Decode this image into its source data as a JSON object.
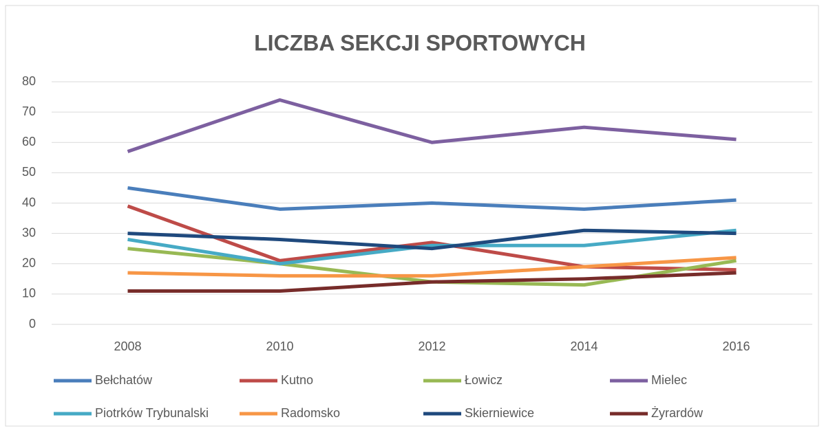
{
  "chart_data": {
    "type": "line",
    "title": "LICZBA SEKCJI SPORTOWYCH",
    "categories": [
      "2008",
      "2010",
      "2012",
      "2014",
      "2016"
    ],
    "series": [
      {
        "name": "Bełchatów",
        "color": "#4a7ebb",
        "values": [
          45,
          38,
          40,
          38,
          41
        ]
      },
      {
        "name": "Kutno",
        "color": "#be4b48",
        "values": [
          39,
          21,
          27,
          19,
          18
        ]
      },
      {
        "name": "Łowicz",
        "color": "#98b954",
        "values": [
          25,
          20,
          14,
          13,
          21
        ]
      },
      {
        "name": "Mielec",
        "color": "#7d60a0",
        "values": [
          57,
          74,
          60,
          65,
          61
        ]
      },
      {
        "name": "Piotrków Trybunalski",
        "color": "#46aac5",
        "values": [
          28,
          20,
          26,
          26,
          31
        ]
      },
      {
        "name": "Radomsko",
        "color": "#f79646",
        "values": [
          17,
          16,
          16,
          19,
          22
        ]
      },
      {
        "name": "Skierniewice",
        "color": "#1f497d",
        "values": [
          30,
          28,
          25,
          31,
          30
        ]
      },
      {
        "name": "Żyrardów",
        "color": "#772c2a",
        "values": [
          11,
          11,
          14,
          15,
          17
        ]
      }
    ],
    "ylim": [
      0,
      80
    ],
    "yticks": [
      0,
      10,
      20,
      30,
      40,
      50,
      60,
      70,
      80
    ],
    "grid": true,
    "legend": "bottom"
  }
}
